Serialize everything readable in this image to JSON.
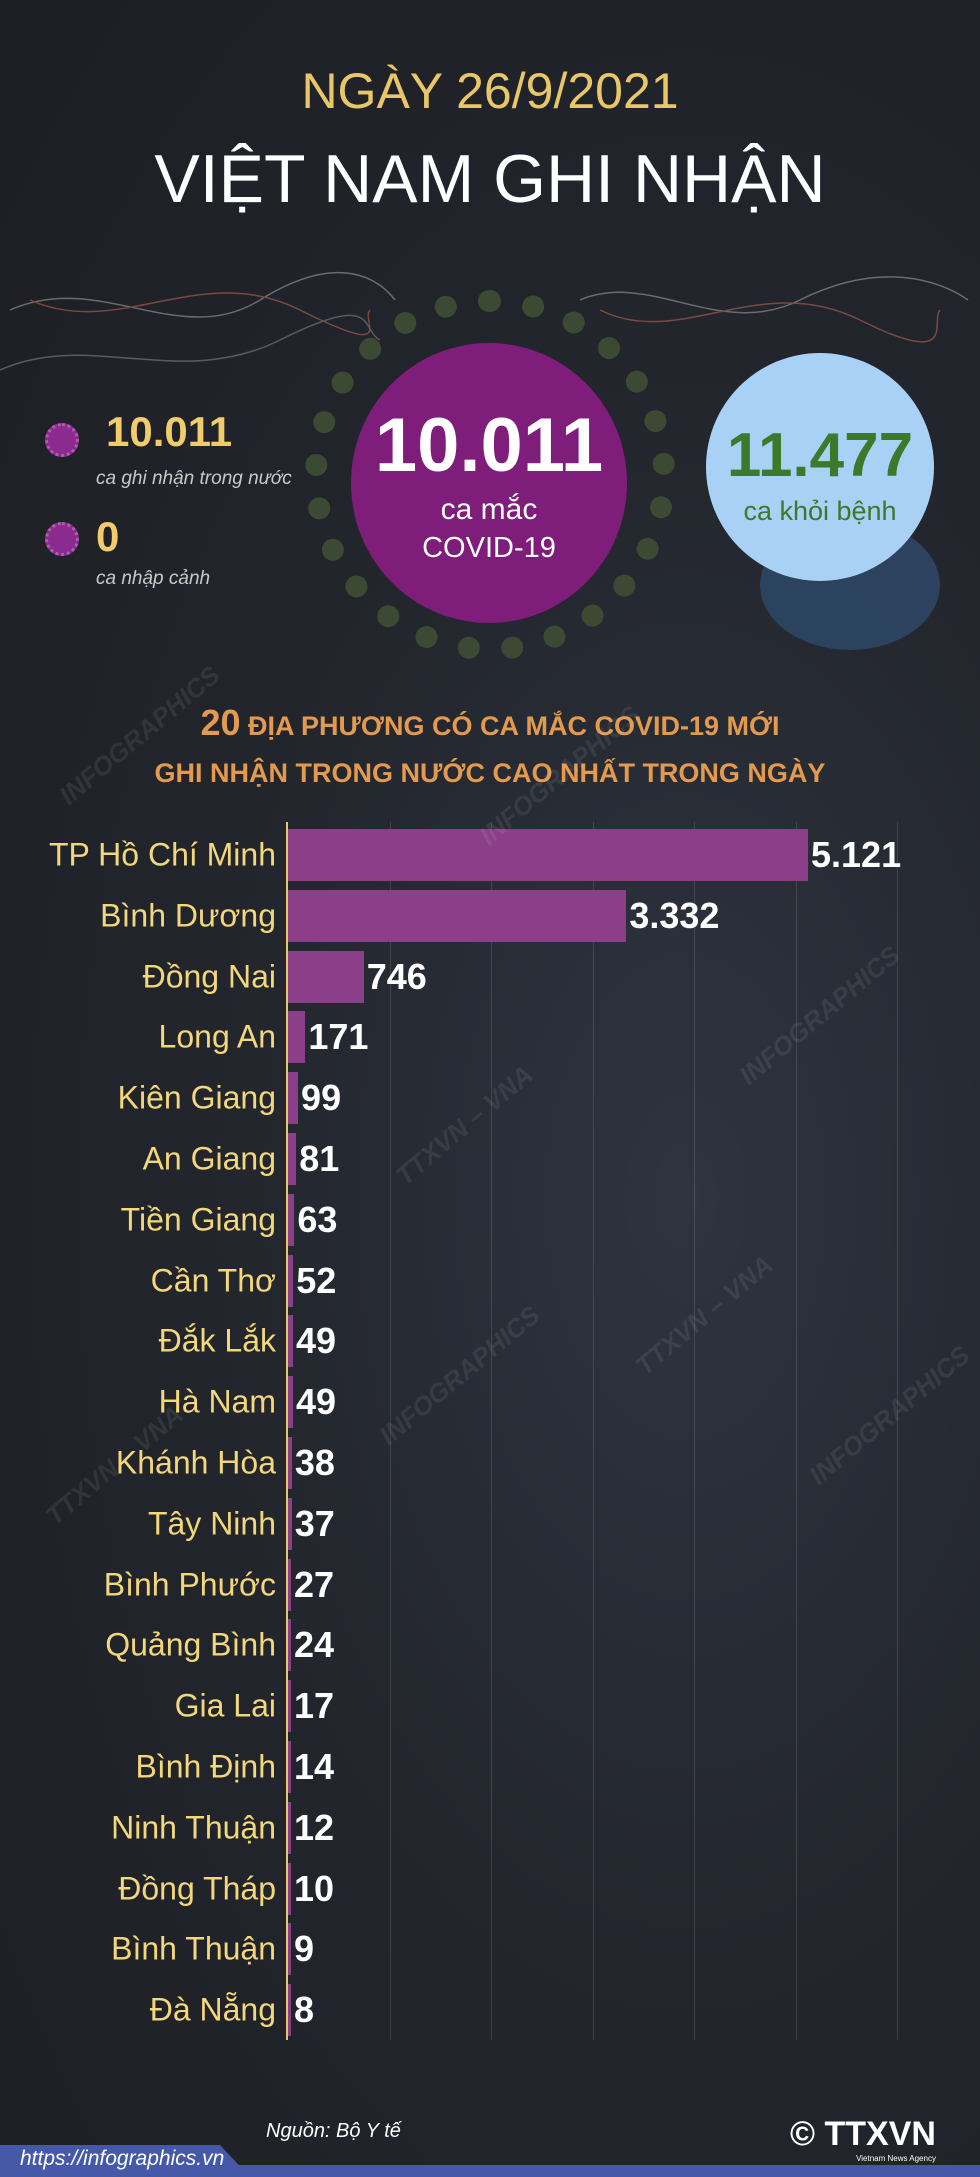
{
  "header": {
    "date": "NGÀY 26/9/2021",
    "title": "VIỆT NAM GHI NHẬN"
  },
  "stats": {
    "domestic": {
      "value": "10.011",
      "label": "ca ghi nhận trong nước"
    },
    "imported": {
      "value": "0",
      "label": "ca nhập cảnh"
    },
    "total": {
      "value": "10.011",
      "label_line1": "ca mắc",
      "label_line2": "COVID-19"
    },
    "recovered": {
      "value": "11.477",
      "label": "ca khỏi bệnh"
    }
  },
  "chart_data": {
    "type": "bar",
    "orientation": "horizontal",
    "title_number": "20",
    "title_line1": "ĐỊA PHƯƠNG CÓ CA MẮC COVID-19 MỚI",
    "title_line2": "GHI NHẬN TRONG NƯỚC CAO NHẤT TRONG NGÀY",
    "categories": [
      "TP Hồ Chí Minh",
      "Bình Dương",
      "Đồng Nai",
      "Long An",
      "Kiên Giang",
      "An Giang",
      "Tiền Giang",
      "Cần Thơ",
      "Đắk Lắk",
      "Hà Nam",
      "Khánh Hòa",
      "Tây Ninh",
      "Bình Phước",
      "Quảng Bình",
      "Gia Lai",
      "Bình Định",
      "Ninh Thuận",
      "Đồng Tháp",
      "Bình Thuận",
      "Đà Nẵng"
    ],
    "values": [
      5121,
      3332,
      746,
      171,
      99,
      81,
      63,
      52,
      49,
      49,
      38,
      37,
      27,
      24,
      17,
      14,
      12,
      10,
      9,
      8
    ],
    "labels": [
      "5.121",
      "3.332",
      "746",
      "171",
      "99",
      "81",
      "63",
      "52",
      "49",
      "49",
      "38",
      "37",
      "27",
      "24",
      "17",
      "14",
      "12",
      "10",
      "9",
      "8"
    ],
    "xlim": [
      0,
      6000
    ],
    "grid": true,
    "bar_color": "#8a3f88",
    "label_color": "#f3d77b"
  },
  "footer": {
    "source": "Nguồn: Bộ Y tế",
    "url": "https://infographics.vn",
    "logo": "TTXVN",
    "logo_sub": "Vietnam News Agency",
    "copyright": "©"
  },
  "watermarks": [
    "INFOGRAPHICS",
    "TTXVN – VNA"
  ],
  "colors": {
    "background": "#23262d",
    "date": "#e7c768",
    "purple": "#7e1d7a",
    "blue": "#a8d1f5",
    "green": "#3a7a2a",
    "chart_title": "#e39a4f"
  }
}
